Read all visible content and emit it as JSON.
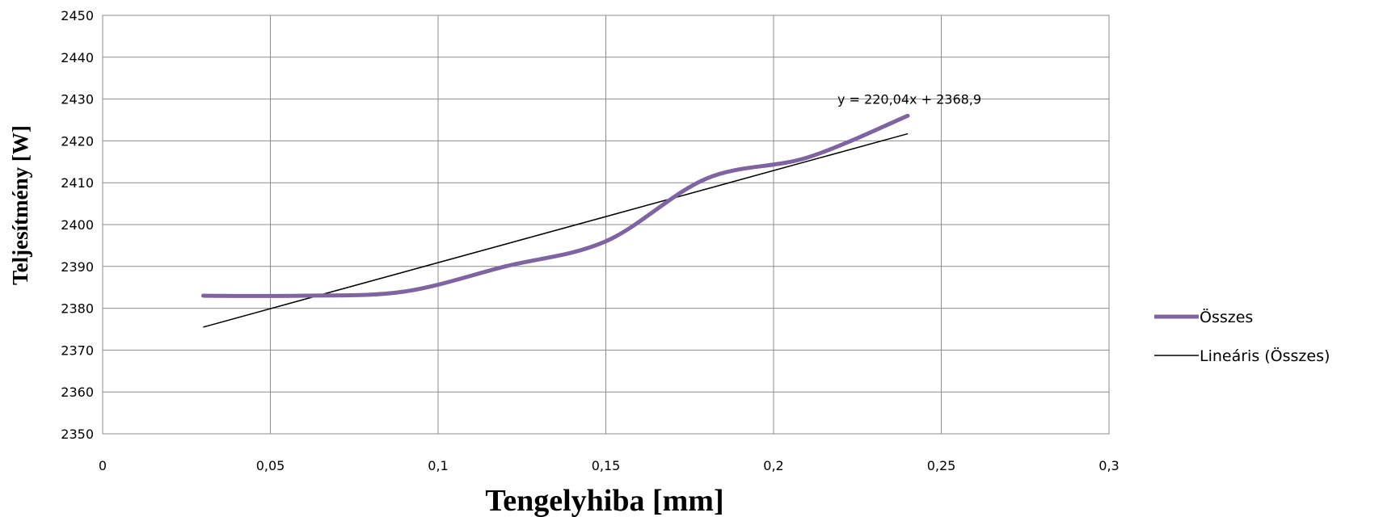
{
  "chart_data": {
    "type": "line",
    "title": "",
    "xlabel": "Tengelyhiba [mm]",
    "ylabel": "Teljesítmény [W]",
    "xlim": [
      0,
      0.3
    ],
    "ylim": [
      2350,
      2450
    ],
    "x_ticks": [
      0,
      0.05,
      0.1,
      0.15,
      0.2,
      0.25,
      0.3
    ],
    "x_tick_labels": [
      "0",
      "0,05",
      "0,1",
      "0,15",
      "0,2",
      "0,25",
      "0,3"
    ],
    "y_ticks": [
      2350,
      2360,
      2370,
      2380,
      2390,
      2400,
      2410,
      2420,
      2430,
      2440,
      2450
    ],
    "y_tick_labels": [
      "2350",
      "2360",
      "2370",
      "2380",
      "2390",
      "2400",
      "2410",
      "2420",
      "2430",
      "2440",
      "2450"
    ],
    "grid": true,
    "legend_position": "right",
    "series": [
      {
        "name": "Összes",
        "color": "#8064a2",
        "smooth": true,
        "x": [
          0.03,
          0.06,
          0.09,
          0.12,
          0.15,
          0.18,
          0.21,
          0.24
        ],
        "y": [
          2383,
          2383,
          2384,
          2390,
          2396,
          2411,
          2416,
          2426
        ]
      },
      {
        "name": "Lineáris (Összes)",
        "color": "#000000",
        "type": "trendline",
        "slope": 220.04,
        "intercept": 2368.9,
        "x_range": [
          0.03,
          0.24
        ]
      }
    ],
    "annotations": [
      {
        "text": "y = 220,04x + 2368,9",
        "x": 0.22,
        "y": 2430
      }
    ]
  }
}
